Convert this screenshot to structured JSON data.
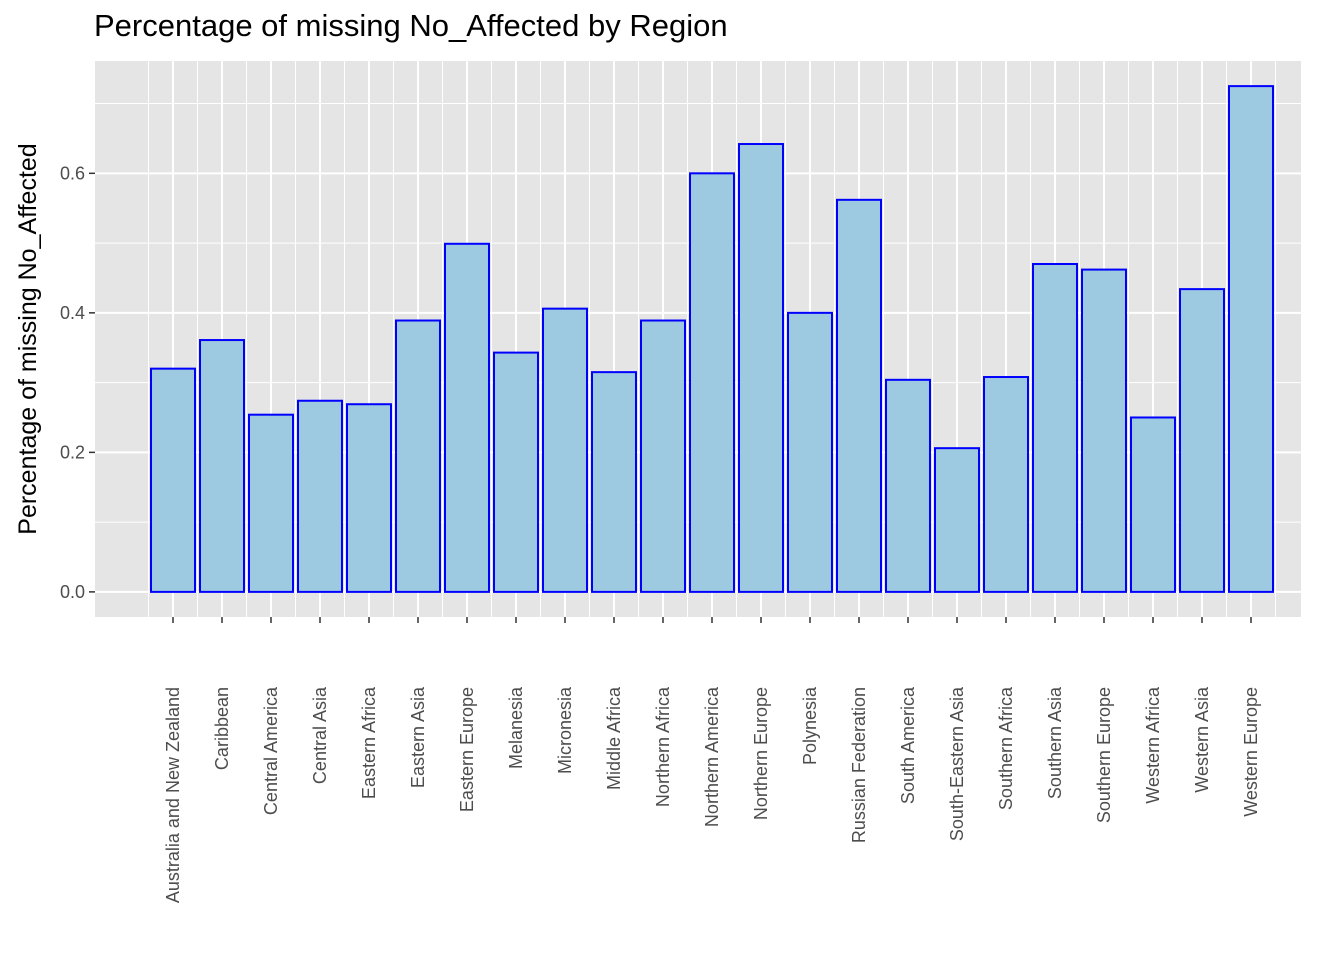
{
  "chart_data": {
    "type": "bar",
    "title": "Percentage of missing No_Affected by Region",
    "xlabel": "",
    "ylabel": "Percentage of missing No_Affected",
    "categories": [
      "Australia and New Zealand",
      "Caribbean",
      "Central America",
      "Central Asia",
      "Eastern Africa",
      "Eastern Asia",
      "Eastern Europe",
      "Melanesia",
      "Micronesia",
      "Middle Africa",
      "Northern Africa",
      "Northern America",
      "Northern Europe",
      "Polynesia",
      "Russian Federation",
      "South America",
      "South-Eastern Asia",
      "Southern Africa",
      "Southern Asia",
      "Southern Europe",
      "Western Africa",
      "Western Asia",
      "Western Europe"
    ],
    "values": [
      0.32,
      0.361,
      0.254,
      0.274,
      0.269,
      0.389,
      0.499,
      0.343,
      0.406,
      0.315,
      0.389,
      0.6,
      0.642,
      0.4,
      0.562,
      0.304,
      0.206,
      0.308,
      0.47,
      0.462,
      0.25,
      0.434,
      0.725
    ],
    "ylim": [
      -0.036,
      0.761
    ],
    "yticks": [
      0.0,
      0.2,
      0.4,
      0.6
    ],
    "ytick_labels": [
      "0.0",
      "0.2",
      "0.4",
      "0.6"
    ],
    "grid": true,
    "colors": {
      "bar_fill": "#9ecae1",
      "bar_stroke": "#0000ff",
      "panel": "#e5e5e5",
      "grid": "#ffffff"
    }
  }
}
